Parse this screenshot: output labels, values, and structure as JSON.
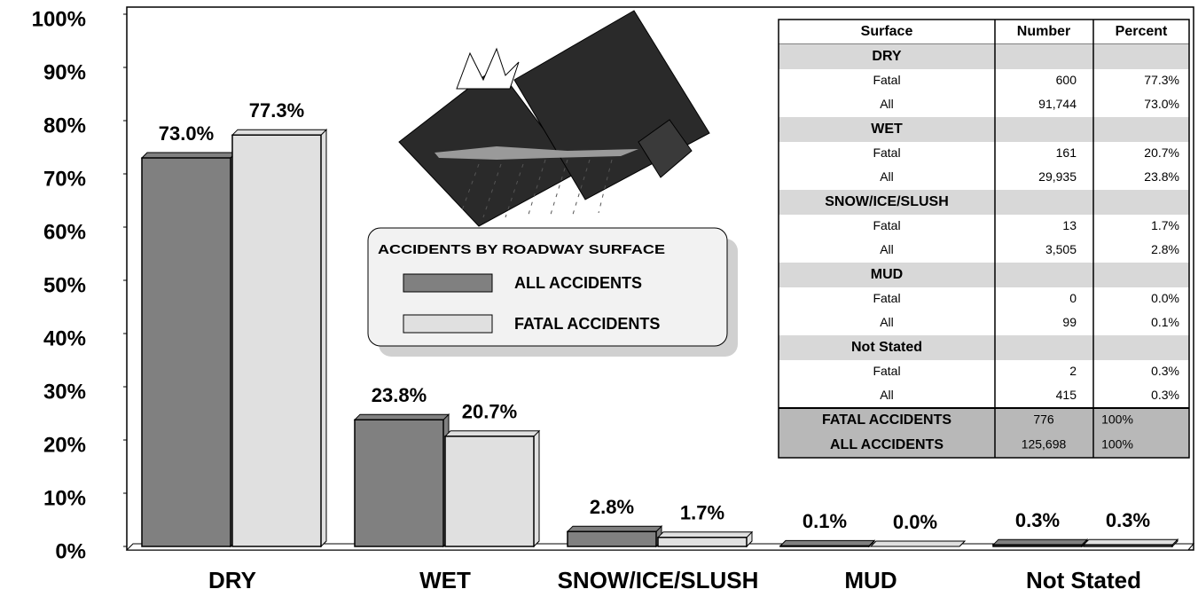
{
  "chart_data": {
    "type": "bar",
    "categories": [
      "DRY",
      "WET",
      "SNOW/ICE/SLUSH",
      "MUD",
      "Not Stated"
    ],
    "series": [
      {
        "name": "ALL ACCIDENTS",
        "color": "#808080",
        "values": [
          73.0,
          23.8,
          2.8,
          0.1,
          0.3
        ],
        "value_labels": [
          "73.0%",
          "23.8%",
          "2.8%",
          "0.1%",
          "0.3%"
        ]
      },
      {
        "name": "FATAL ACCIDENTS",
        "color": "#e0e0e0",
        "values": [
          77.3,
          20.7,
          1.7,
          0.0,
          0.3
        ],
        "value_labels": [
          "77.3%",
          "20.7%",
          "1.7%",
          "0.0%",
          "0.3%"
        ]
      }
    ],
    "ylim": [
      0,
      100
    ],
    "yticks": [
      {
        "value": 0,
        "label": "0%"
      },
      {
        "value": 10,
        "label": "10%"
      },
      {
        "value": 20,
        "label": "20%"
      },
      {
        "value": 30,
        "label": "30%"
      },
      {
        "value": 40,
        "label": "40%"
      },
      {
        "value": 50,
        "label": "50%"
      },
      {
        "value": 60,
        "label": "60%"
      },
      {
        "value": 70,
        "label": "70%"
      },
      {
        "value": 80,
        "label": "80%"
      },
      {
        "value": 90,
        "label": "90%"
      },
      {
        "value": 100,
        "label": "100%"
      }
    ],
    "legend_title": "ACCIDENTS BY ROADWAY SURFACE"
  },
  "table": {
    "header": [
      "Surface",
      "Number",
      "Percent"
    ],
    "sections": [
      {
        "name": "DRY",
        "rows": [
          [
            "Fatal",
            "600",
            "77.3%"
          ],
          [
            "All",
            "91,744",
            "73.0%"
          ]
        ]
      },
      {
        "name": "WET",
        "rows": [
          [
            "Fatal",
            "161",
            "20.7%"
          ],
          [
            "All",
            "29,935",
            "23.8%"
          ]
        ]
      },
      {
        "name": "SNOW/ICE/SLUSH",
        "rows": [
          [
            "Fatal",
            "13",
            "1.7%"
          ],
          [
            "All",
            "3,505",
            "2.8%"
          ]
        ]
      },
      {
        "name": "MUD",
        "rows": [
          [
            "Fatal",
            "0",
            "0.0%"
          ],
          [
            "All",
            "99",
            "0.1%"
          ]
        ]
      },
      {
        "name": "Not Stated",
        "rows": [
          [
            "Fatal",
            "2",
            "0.3%"
          ],
          [
            "All",
            "415",
            "0.3%"
          ]
        ]
      }
    ],
    "totals": [
      [
        "FATAL ACCIDENTS",
        "776",
        "100%"
      ],
      [
        "ALL ACCIDENTS",
        "125,698",
        "100%"
      ]
    ]
  }
}
